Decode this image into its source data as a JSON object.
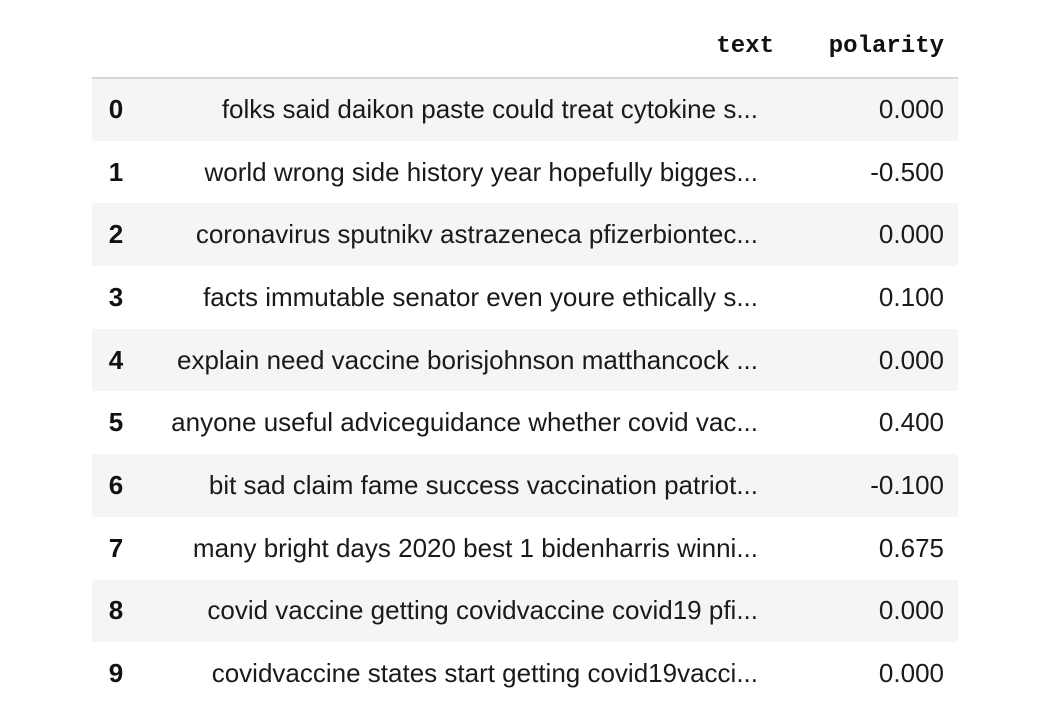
{
  "table": {
    "columns": [
      "text",
      "polarity"
    ],
    "rows": [
      {
        "index": "0",
        "text": "folks said daikon paste could treat cytokine s...",
        "polarity": "0.000"
      },
      {
        "index": "1",
        "text": "world wrong side history year hopefully bigges...",
        "polarity": "-0.500"
      },
      {
        "index": "2",
        "text": "coronavirus sputnikv astrazeneca pfizerbiontec...",
        "polarity": "0.000"
      },
      {
        "index": "3",
        "text": "facts immutable senator even youre ethically s...",
        "polarity": "0.100"
      },
      {
        "index": "4",
        "text": "explain need vaccine borisjohnson matthancock ...",
        "polarity": "0.000"
      },
      {
        "index": "5",
        "text": "anyone useful adviceguidance whether covid vac...",
        "polarity": "0.400"
      },
      {
        "index": "6",
        "text": "bit sad claim fame success vaccination patriot...",
        "polarity": "-0.100"
      },
      {
        "index": "7",
        "text": "many bright days 2020 best 1 bidenharris winni...",
        "polarity": "0.675"
      },
      {
        "index": "8",
        "text": "covid vaccine getting covidvaccine covid19 pfi...",
        "polarity": "0.000"
      },
      {
        "index": "9",
        "text": "covidvaccine states start getting covid19vacci...",
        "polarity": "0.000"
      }
    ]
  }
}
